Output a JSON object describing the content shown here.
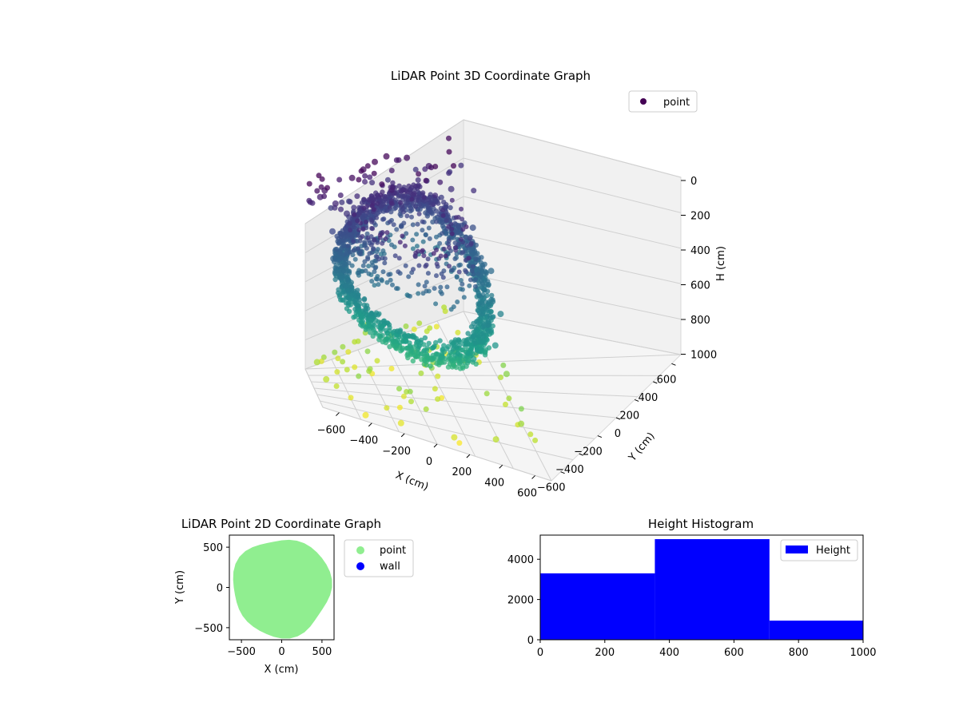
{
  "chart_data": [
    {
      "type": "scatter",
      "projection": "3d",
      "title": "LiDAR Point 3D Coordinate Graph",
      "xlabel": "X (cm)",
      "ylabel": "Y (cm)",
      "zlabel": "H (cm)",
      "xlim": [
        -650,
        650
      ],
      "ylim": [
        -650,
        650
      ],
      "zlim": [
        1000,
        0
      ],
      "z_inverted": true,
      "grid": true,
      "legend": {
        "position": "top-right",
        "entries": [
          "point"
        ]
      },
      "colormap": "viridis",
      "color_by": "height",
      "xticks": [
        "−600",
        "−400",
        "−200",
        "0",
        "200",
        "400",
        "600"
      ],
      "yticks": [
        "−600",
        "−400",
        "−200",
        "0",
        "200",
        "400",
        "600"
      ],
      "zticks": [
        "0",
        "200",
        "400",
        "600",
        "800",
        "1000"
      ],
      "series": [
        {
          "name": "point",
          "description_shape": "dense elliptical ring of points forming a tilted bowl-shaped wall, plus sparse scattered outliers",
          "points_sample": [
            {
              "x": -560,
              "y": 420,
              "h": 80
            },
            {
              "x": -520,
              "y": 460,
              "h": 60
            },
            {
              "x": -450,
              "y": 380,
              "h": 120
            },
            {
              "x": -380,
              "y": 300,
              "h": 160
            },
            {
              "x": -300,
              "y": 500,
              "h": 40
            },
            {
              "x": -200,
              "y": 550,
              "h": 30
            },
            {
              "x": -100,
              "y": 580,
              "h": 20
            },
            {
              "x": 0,
              "y": 600,
              "h": 20
            },
            {
              "x": 150,
              "y": 560,
              "h": 40
            },
            {
              "x": 300,
              "y": 500,
              "h": 80
            },
            {
              "x": 420,
              "y": 380,
              "h": 150
            },
            {
              "x": 500,
              "y": 200,
              "h": 250
            },
            {
              "x": 540,
              "y": 0,
              "h": 350
            },
            {
              "x": 520,
              "y": -200,
              "h": 450
            },
            {
              "x": 420,
              "y": -380,
              "h": 520
            },
            {
              "x": 250,
              "y": -500,
              "h": 560
            },
            {
              "x": 50,
              "y": -540,
              "h": 580
            },
            {
              "x": -150,
              "y": -500,
              "h": 560
            },
            {
              "x": -330,
              "y": -380,
              "h": 500
            },
            {
              "x": -460,
              "y": -200,
              "h": 420
            },
            {
              "x": -520,
              "y": 0,
              "h": 320
            },
            {
              "x": -500,
              "y": 200,
              "h": 220
            },
            {
              "x": -400,
              "y": -600,
              "h": 980
            },
            {
              "x": -200,
              "y": -620,
              "h": 960
            },
            {
              "x": 100,
              "y": -640,
              "h": 940
            },
            {
              "x": 350,
              "y": -600,
              "h": 900
            },
            {
              "x": 550,
              "y": -450,
              "h": 860
            },
            {
              "x": 600,
              "y": -100,
              "h": 820
            },
            {
              "x": -600,
              "y": -300,
              "h": 900
            },
            {
              "x": -620,
              "y": 100,
              "h": 880
            }
          ]
        }
      ]
    },
    {
      "type": "scatter",
      "title": "LiDAR Point 2D Coordinate Graph",
      "xlabel": "X (cm)",
      "ylabel": "Y (cm)",
      "xlim": [
        -650,
        650
      ],
      "ylim": [
        -650,
        650
      ],
      "xticks": [
        "−500",
        "0",
        "500"
      ],
      "yticks": [
        "500",
        "0",
        "−500"
      ],
      "legend": {
        "position": "right-outside",
        "entries": [
          "point",
          "wall"
        ]
      },
      "series": [
        {
          "name": "point",
          "color": "#90ee90",
          "description_shape": "filled roughly circular region of radius ~600 cm"
        },
        {
          "name": "wall",
          "color": "#0000ff",
          "values": []
        }
      ]
    },
    {
      "type": "bar",
      "subtype": "histogram",
      "title": "Height Histogram",
      "xlabel": "",
      "ylabel": "",
      "xlim": [
        0,
        1000
      ],
      "ylim": [
        0,
        5200
      ],
      "xticks": [
        "0",
        "200",
        "400",
        "600",
        "800",
        "1000"
      ],
      "yticks": [
        "0",
        "2000",
        "4000"
      ],
      "legend": {
        "position": "top-right",
        "entries": [
          "Height"
        ]
      },
      "bins": [
        {
          "start": 0,
          "end": 355,
          "count": 3300
        },
        {
          "start": 355,
          "end": 710,
          "count": 5000
        },
        {
          "start": 710,
          "end": 1000,
          "count": 950
        }
      ],
      "series": [
        {
          "name": "Height",
          "color": "#0000ff"
        }
      ]
    }
  ]
}
